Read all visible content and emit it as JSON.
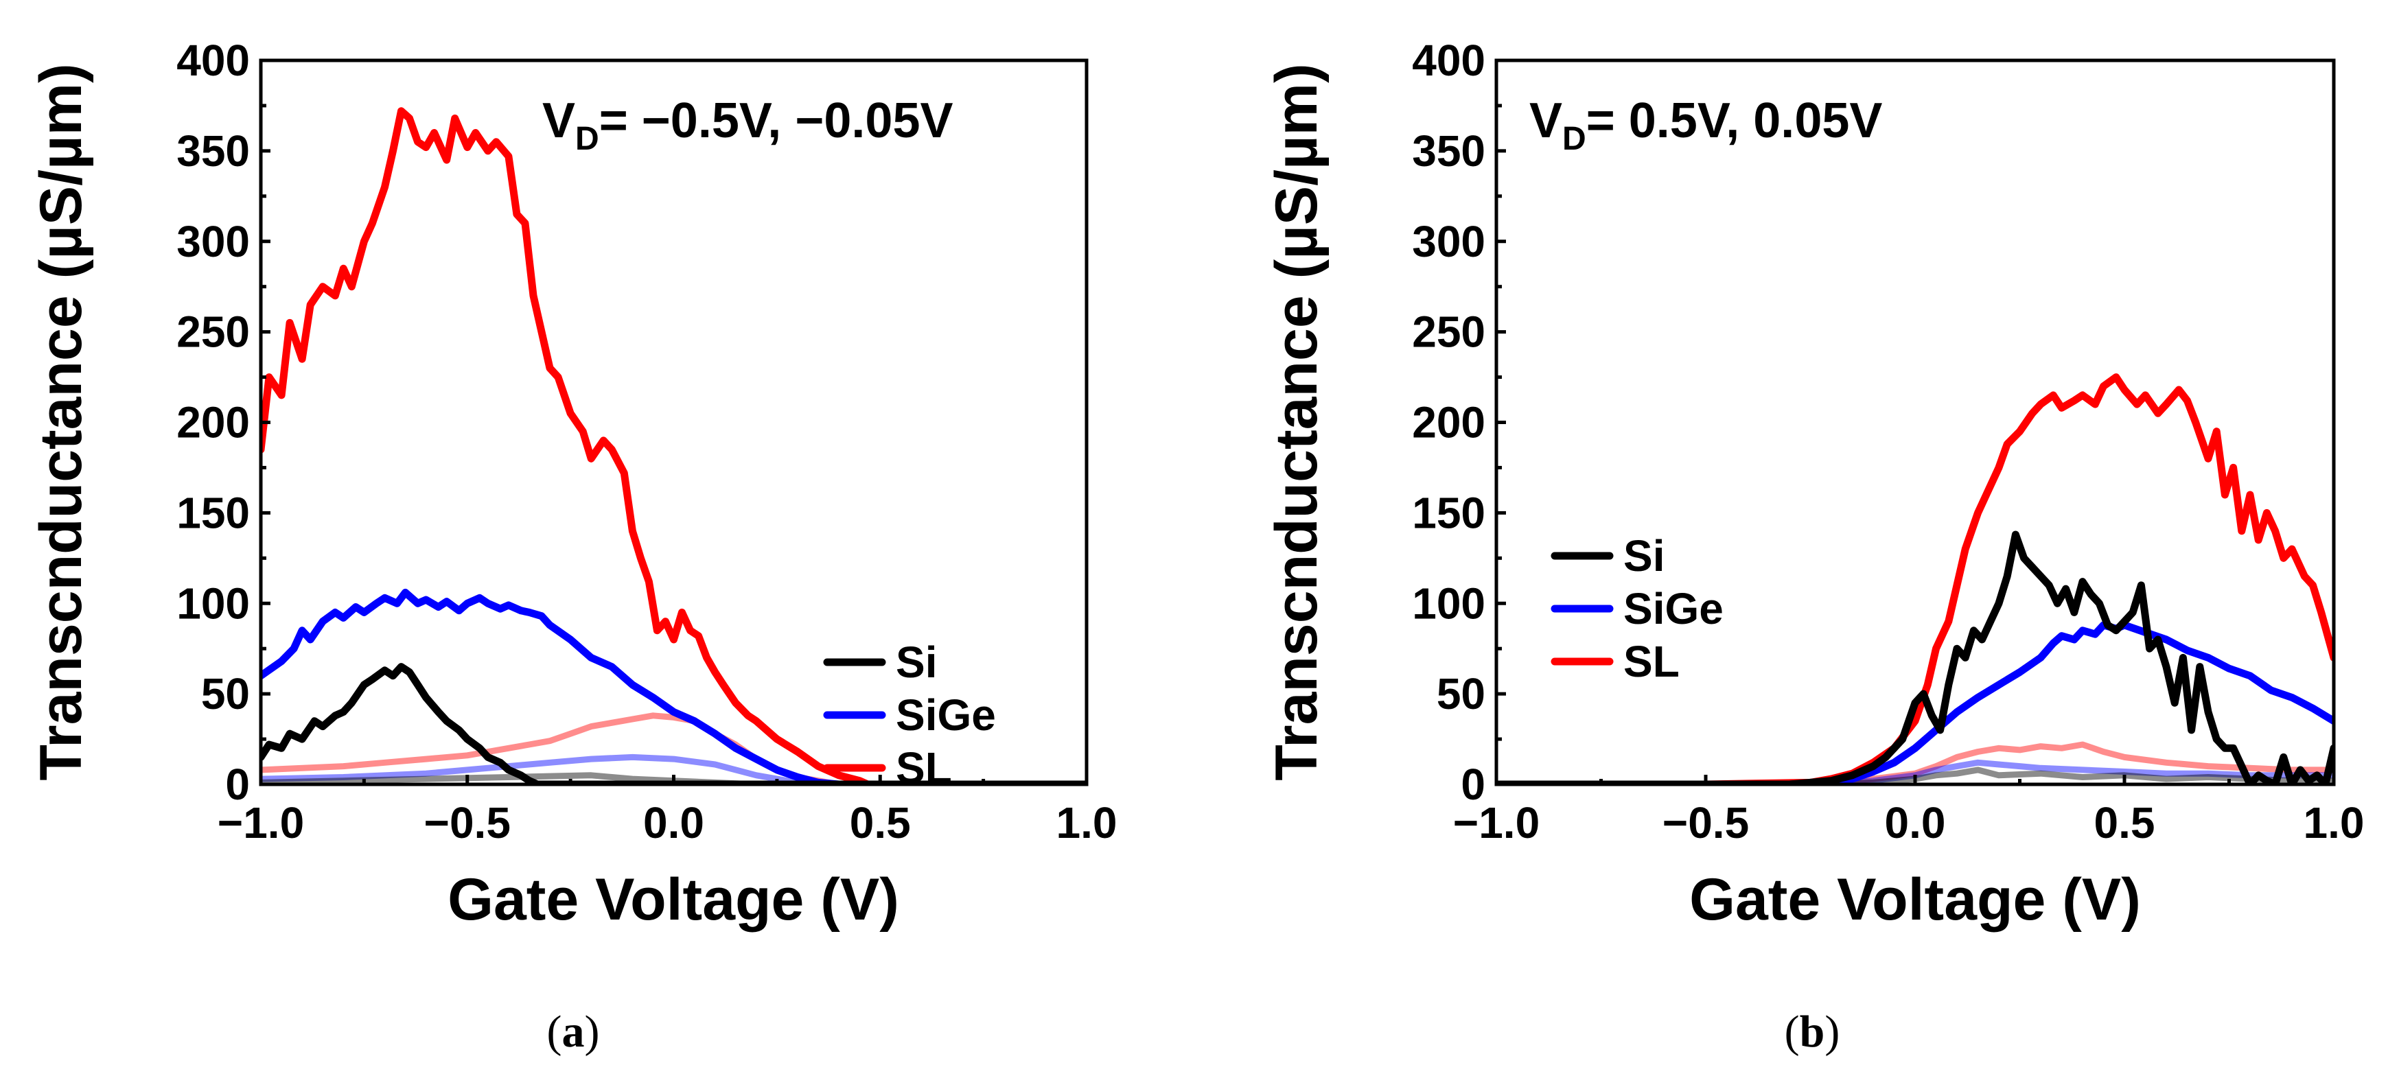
{
  "chart_data": [
    {
      "type": "line",
      "panel_label": "a",
      "annotation": {
        "main": "V",
        "sub": "D",
        "rest": "= −0.5V, −0.05V"
      },
      "xlabel": "Gate Voltage (V)",
      "ylabel": "Transcnductance (µS/µm)",
      "xlim": [
        -1.0,
        1.0
      ],
      "ylim": [
        0,
        400
      ],
      "xticks": [
        -1.0,
        -0.5,
        0.0,
        0.5,
        1.0
      ],
      "xtick_labels": [
        "−1.0",
        "−0.5",
        "0.0",
        "0.5",
        "1.0"
      ],
      "yticks": [
        0,
        50,
        100,
        150,
        200,
        250,
        300,
        350,
        400
      ],
      "ytick_labels": [
        "0",
        "50",
        "100",
        "150",
        "200",
        "250",
        "300",
        "350",
        "400"
      ],
      "legend": [
        "Si",
        "SiGe",
        "SL"
      ],
      "series": [
        {
          "name": "SL",
          "vd": "−0.5V",
          "color": "#ff0000",
          "faded": false,
          "x": [
            -1.0,
            -0.98,
            -0.95,
            -0.93,
            -0.9,
            -0.88,
            -0.85,
            -0.82,
            -0.8,
            -0.78,
            -0.75,
            -0.73,
            -0.7,
            -0.68,
            -0.66,
            -0.64,
            -0.62,
            -0.6,
            -0.58,
            -0.55,
            -0.53,
            -0.5,
            -0.48,
            -0.45,
            -0.43,
            -0.4,
            -0.38,
            -0.36,
            -0.34,
            -0.32,
            -0.3,
            -0.28,
            -0.25,
            -0.22,
            -0.2,
            -0.17,
            -0.15,
            -0.12,
            -0.1,
            -0.08,
            -0.06,
            -0.04,
            -0.02,
            0.0,
            0.02,
            0.04,
            0.06,
            0.08,
            0.1,
            0.12,
            0.15,
            0.18,
            0.2,
            0.25,
            0.3,
            0.35,
            0.4,
            0.45,
            0.47,
            0.5,
            0.6,
            0.7,
            0.8,
            0.9,
            1.0
          ],
          "y": [
            185,
            225,
            215,
            255,
            235,
            265,
            275,
            270,
            285,
            275,
            300,
            310,
            330,
            350,
            372,
            368,
            355,
            352,
            360,
            345,
            368,
            352,
            360,
            350,
            355,
            347,
            315,
            310,
            270,
            250,
            230,
            225,
            205,
            195,
            180,
            190,
            185,
            172,
            140,
            125,
            112,
            85,
            90,
            80,
            95,
            85,
            82,
            70,
            62,
            55,
            45,
            38,
            35,
            25,
            18,
            10,
            5,
            2,
            0,
            0,
            0,
            0,
            0,
            0,
            0
          ]
        },
        {
          "name": "SiGe",
          "vd": "−0.5V",
          "color": "#0000ff",
          "faded": false,
          "x": [
            -1.0,
            -0.95,
            -0.92,
            -0.9,
            -0.88,
            -0.85,
            -0.82,
            -0.8,
            -0.77,
            -0.75,
            -0.72,
            -0.7,
            -0.67,
            -0.65,
            -0.62,
            -0.6,
            -0.57,
            -0.55,
            -0.52,
            -0.5,
            -0.47,
            -0.45,
            -0.42,
            -0.4,
            -0.37,
            -0.35,
            -0.32,
            -0.3,
            -0.25,
            -0.2,
            -0.15,
            -0.1,
            -0.05,
            0.0,
            0.05,
            0.1,
            0.15,
            0.2,
            0.25,
            0.3,
            0.35,
            0.4,
            0.5,
            0.6,
            0.8,
            1.0
          ],
          "y": [
            60,
            68,
            75,
            85,
            80,
            90,
            95,
            92,
            98,
            95,
            100,
            103,
            100,
            106,
            100,
            102,
            98,
            101,
            96,
            100,
            103,
            100,
            97,
            99,
            96,
            95,
            93,
            88,
            80,
            70,
            65,
            55,
            48,
            40,
            35,
            28,
            20,
            14,
            8,
            4,
            1,
            0,
            0,
            0,
            0,
            0
          ]
        },
        {
          "name": "Si",
          "vd": "−0.5V",
          "color": "#000000",
          "faded": false,
          "x": [
            -1.0,
            -0.98,
            -0.95,
            -0.93,
            -0.9,
            -0.87,
            -0.85,
            -0.82,
            -0.8,
            -0.78,
            -0.75,
            -0.73,
            -0.7,
            -0.68,
            -0.66,
            -0.64,
            -0.62,
            -0.6,
            -0.57,
            -0.55,
            -0.52,
            -0.5,
            -0.47,
            -0.45,
            -0.42,
            -0.4,
            -0.37,
            -0.35,
            -0.33,
            -0.3,
            -0.2,
            0.0,
            0.5,
            1.0
          ],
          "y": [
            15,
            22,
            20,
            28,
            25,
            35,
            32,
            38,
            40,
            45,
            55,
            58,
            63,
            60,
            65,
            62,
            55,
            48,
            40,
            35,
            30,
            25,
            20,
            15,
            12,
            8,
            5,
            2,
            0,
            0,
            0,
            0,
            0,
            0
          ]
        },
        {
          "name": "SL",
          "vd": "−0.05V",
          "color": "#ff0000",
          "faded": true,
          "x": [
            -1.0,
            -0.8,
            -0.7,
            -0.6,
            -0.5,
            -0.4,
            -0.35,
            -0.3,
            -0.25,
            -0.2,
            -0.15,
            -0.1,
            -0.05,
            0.0,
            0.05,
            0.1,
            0.15,
            0.2,
            0.25,
            0.3,
            0.35,
            0.4,
            0.5,
            1.0
          ],
          "y": [
            8,
            10,
            12,
            14,
            16,
            20,
            22,
            24,
            28,
            32,
            34,
            36,
            38,
            37,
            35,
            28,
            22,
            14,
            8,
            4,
            2,
            0,
            0,
            0
          ]
        },
        {
          "name": "SiGe",
          "vd": "−0.05V",
          "color": "#0000ff",
          "faded": true,
          "x": [
            -1.0,
            -0.8,
            -0.6,
            -0.5,
            -0.4,
            -0.3,
            -0.2,
            -0.1,
            0.0,
            0.1,
            0.15,
            0.2,
            0.25,
            0.3,
            0.35,
            0.4,
            1.0
          ],
          "y": [
            3,
            4,
            6,
            8,
            10,
            12,
            14,
            15,
            14,
            11,
            8,
            5,
            3,
            1,
            0,
            0,
            0
          ]
        },
        {
          "name": "Si",
          "vd": "−0.05V",
          "color": "#000000",
          "faded": true,
          "x": [
            -1.0,
            -0.8,
            -0.6,
            -0.4,
            -0.2,
            -0.1,
            0.0,
            0.1,
            0.2,
            1.0
          ],
          "y": [
            1,
            2,
            3,
            4,
            5,
            3,
            2,
            1,
            0,
            0
          ]
        }
      ]
    },
    {
      "type": "line",
      "panel_label": "b",
      "annotation": {
        "main": "V",
        "sub": "D",
        "rest": "= 0.5V, 0.05V"
      },
      "xlabel": "Gate Voltage (V)",
      "ylabel": "Transcnductance (µS/µm)",
      "xlim": [
        -1.0,
        1.0
      ],
      "ylim": [
        0,
        400
      ],
      "xticks": [
        -1.0,
        -0.5,
        0.0,
        0.5,
        1.0
      ],
      "xtick_labels": [
        "−1.0",
        "−0.5",
        "0.0",
        "0.5",
        "1.0"
      ],
      "yticks": [
        0,
        50,
        100,
        150,
        200,
        250,
        300,
        350,
        400
      ],
      "ytick_labels": [
        "0",
        "50",
        "100",
        "150",
        "200",
        "250",
        "300",
        "350",
        "400"
      ],
      "legend": [
        "Si",
        "SiGe",
        "SL"
      ],
      "series": [
        {
          "name": "SL",
          "vd": "0.5V",
          "color": "#ff0000",
          "faded": false,
          "x": [
            -1.0,
            -0.5,
            -0.25,
            -0.2,
            -0.15,
            -0.1,
            -0.05,
            0.0,
            0.03,
            0.05,
            0.08,
            0.1,
            0.12,
            0.15,
            0.17,
            0.2,
            0.22,
            0.25,
            0.28,
            0.3,
            0.33,
            0.35,
            0.38,
            0.4,
            0.43,
            0.45,
            0.48,
            0.5,
            0.53,
            0.55,
            0.58,
            0.6,
            0.63,
            0.65,
            0.67,
            0.7,
            0.72,
            0.74,
            0.76,
            0.78,
            0.8,
            0.82,
            0.84,
            0.86,
            0.88,
            0.9,
            0.93,
            0.95,
            0.97,
            1.0
          ],
          "y": [
            0,
            0,
            1,
            3,
            6,
            12,
            20,
            35,
            55,
            75,
            90,
            110,
            130,
            150,
            160,
            175,
            188,
            195,
            205,
            210,
            215,
            208,
            212,
            215,
            210,
            220,
            225,
            218,
            210,
            215,
            205,
            210,
            218,
            212,
            200,
            180,
            195,
            160,
            175,
            140,
            160,
            135,
            150,
            140,
            125,
            130,
            115,
            110,
            95,
            70
          ]
        },
        {
          "name": "SiGe",
          "vd": "0.5V",
          "color": "#0000ff",
          "faded": false,
          "x": [
            -1.0,
            -0.3,
            -0.2,
            -0.15,
            -0.1,
            -0.05,
            0.0,
            0.05,
            0.1,
            0.15,
            0.2,
            0.25,
            0.3,
            0.33,
            0.35,
            0.38,
            0.4,
            0.43,
            0.45,
            0.48,
            0.5,
            0.55,
            0.6,
            0.65,
            0.7,
            0.75,
            0.8,
            0.85,
            0.9,
            0.95,
            1.0
          ],
          "y": [
            0,
            0,
            1,
            3,
            7,
            12,
            20,
            30,
            40,
            48,
            55,
            62,
            70,
            78,
            82,
            80,
            85,
            83,
            88,
            86,
            88,
            84,
            80,
            74,
            70,
            64,
            60,
            52,
            48,
            42,
            35
          ]
        },
        {
          "name": "Si",
          "vd": "0.5V",
          "color": "#000000",
          "faded": false,
          "x": [
            -1.0,
            -0.3,
            -0.2,
            -0.15,
            -0.1,
            -0.07,
            -0.05,
            -0.03,
            0.0,
            0.02,
            0.04,
            0.06,
            0.08,
            0.1,
            0.12,
            0.14,
            0.16,
            0.18,
            0.2,
            0.22,
            0.24,
            0.26,
            0.28,
            0.3,
            0.32,
            0.34,
            0.36,
            0.38,
            0.4,
            0.42,
            0.44,
            0.46,
            0.48,
            0.5,
            0.52,
            0.54,
            0.56,
            0.58,
            0.6,
            0.62,
            0.64,
            0.66,
            0.68,
            0.7,
            0.72,
            0.74,
            0.76,
            0.78,
            0.8,
            0.82,
            0.84,
            0.86,
            0.88,
            0.9,
            0.92,
            0.94,
            0.96,
            0.98,
            1.0
          ],
          "y": [
            0,
            0,
            2,
            5,
            10,
            15,
            20,
            25,
            45,
            50,
            38,
            30,
            55,
            75,
            70,
            85,
            80,
            90,
            100,
            115,
            138,
            125,
            120,
            115,
            110,
            100,
            108,
            95,
            112,
            105,
            100,
            88,
            85,
            90,
            95,
            110,
            75,
            80,
            65,
            45,
            70,
            30,
            65,
            40,
            25,
            20,
            20,
            10,
            0,
            5,
            2,
            0,
            15,
            0,
            8,
            2,
            5,
            0,
            20
          ]
        },
        {
          "name": "SL",
          "vd": "0.05V",
          "color": "#ff0000",
          "faded": true,
          "x": [
            -1.0,
            -0.3,
            -0.2,
            -0.1,
            0.0,
            0.05,
            0.1,
            0.15,
            0.2,
            0.25,
            0.3,
            0.35,
            0.4,
            0.45,
            0.5,
            0.6,
            0.7,
            0.8,
            0.9,
            1.0
          ],
          "y": [
            0,
            0,
            1,
            3,
            6,
            10,
            15,
            18,
            20,
            19,
            21,
            20,
            22,
            18,
            15,
            12,
            10,
            9,
            8,
            8
          ]
        },
        {
          "name": "SiGe",
          "vd": "0.05V",
          "color": "#0000ff",
          "faded": true,
          "x": [
            -1.0,
            -0.2,
            -0.1,
            0.0,
            0.05,
            0.1,
            0.15,
            0.2,
            0.25,
            0.3,
            0.4,
            0.5,
            0.6,
            0.7,
            0.8,
            1.0
          ],
          "y": [
            0,
            0,
            2,
            5,
            8,
            10,
            12,
            11,
            10,
            9,
            8,
            7,
            6,
            6,
            5,
            5
          ]
        },
        {
          "name": "Si",
          "vd": "0.05V",
          "color": "#000000",
          "faded": true,
          "x": [
            -1.0,
            -0.2,
            -0.1,
            0.0,
            0.05,
            0.1,
            0.15,
            0.2,
            0.3,
            0.4,
            0.5,
            0.6,
            0.7,
            0.8,
            0.9,
            1.0
          ],
          "y": [
            0,
            0,
            1,
            3,
            5,
            6,
            8,
            5,
            6,
            4,
            5,
            3,
            4,
            3,
            2,
            2
          ]
        }
      ]
    }
  ]
}
